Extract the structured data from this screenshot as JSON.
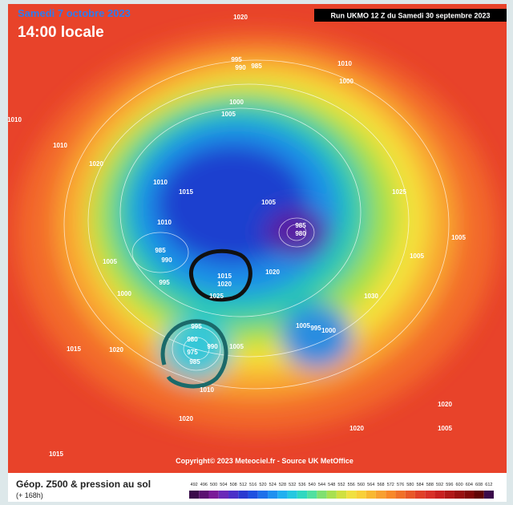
{
  "header": {
    "date": "Samedi 7 octobre 2023",
    "time": "14:00 locale",
    "run": "Run UKMO 12 Z du Samedi 30 septembre 2023"
  },
  "map": {
    "labels": [
      "1020",
      "1010",
      "995",
      "990",
      "985",
      "1000",
      "1000",
      "1005",
      "1010",
      "1010",
      "1020",
      "1010",
      "1015",
      "1005",
      "1010",
      "985",
      "1005",
      "990",
      "995",
      "1015",
      "1020",
      "1025",
      "1000",
      "995",
      "980",
      "975",
      "985",
      "990",
      "1005",
      "1015",
      "1020",
      "1010",
      "1020",
      "985",
      "980",
      "1020",
      "1005",
      "995",
      "1000",
      "1030",
      "1025",
      "1005",
      "1005",
      "1020",
      "1015",
      "1020",
      "1005"
    ]
  },
  "footer": {
    "copyright": "Copyright© 2023 Meteociel.fr - Source UK MetOffice"
  },
  "legend": {
    "title": "Géop. Z500 & pression au sol",
    "lead": "(+ 168h)",
    "scale": [
      492,
      496,
      500,
      504,
      508,
      512,
      516,
      520,
      524,
      528,
      532,
      536,
      540,
      544,
      548,
      552,
      556,
      560,
      564,
      568,
      572,
      576,
      580,
      584,
      588,
      592,
      596,
      600,
      604,
      608,
      612
    ]
  }
}
